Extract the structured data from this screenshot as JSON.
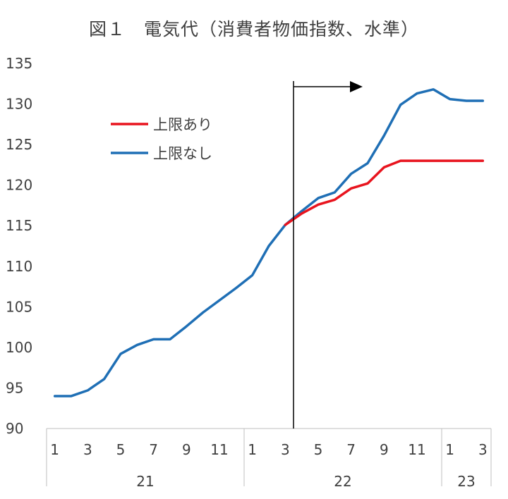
{
  "chart_data": {
    "type": "line",
    "title": "図１　電気代（消費者物価指数、水準）",
    "xlabel": "",
    "ylabel": "",
    "ylim": [
      90,
      135
    ],
    "yticks": [
      "90",
      "95",
      "100",
      "105",
      "110",
      "115",
      "120",
      "125",
      "130",
      "135"
    ],
    "grid": false,
    "legend_position": "upper-left",
    "x_month_labels": [
      "1",
      "",
      "3",
      "",
      "5",
      "",
      "7",
      "",
      "9",
      "",
      "11",
      "",
      "1",
      "",
      "3",
      "",
      "5",
      "",
      "7",
      "",
      "9",
      "",
      "11",
      "",
      "1",
      "",
      "3"
    ],
    "x_year_labels": [
      "21",
      "22",
      "23"
    ],
    "categories": [
      "2021-01",
      "2021-02",
      "2021-03",
      "2021-04",
      "2021-05",
      "2021-06",
      "2021-07",
      "2021-08",
      "2021-09",
      "2021-10",
      "2021-11",
      "2021-12",
      "2022-01",
      "2022-02",
      "2022-03",
      "2022-04",
      "2022-05",
      "2022-06",
      "2022-07",
      "2022-08",
      "2022-09",
      "2022-10",
      "2022-11",
      "2022-12",
      "2023-01",
      "2023-02",
      "2023-03"
    ],
    "series": [
      {
        "name": "上限なし",
        "color": "#1f6fb5",
        "values": [
          94.0,
          94.0,
          94.7,
          96.1,
          99.2,
          100.3,
          101.0,
          101.0,
          102.6,
          104.3,
          105.8,
          107.3,
          108.9,
          112.5,
          115.1,
          116.8,
          118.4,
          119.1,
          121.4,
          122.7,
          126.1,
          129.9,
          131.3,
          131.8,
          130.6,
          130.4,
          130.4
        ]
      },
      {
        "name": "上限あり",
        "color": "#e8141e",
        "values": [
          null,
          null,
          null,
          null,
          null,
          null,
          null,
          null,
          null,
          null,
          null,
          null,
          null,
          null,
          null,
          116.5,
          117.6,
          118.2,
          119.6,
          120.2,
          122.2,
          123.0,
          123.0,
          123.0,
          123.0,
          123.0,
          123.0
        ]
      }
    ],
    "annotations": [
      {
        "type": "vertical-line",
        "description": "marker",
        "x_position_month_index": 14.5
      },
      {
        "type": "arrow",
        "direction": "right"
      }
    ]
  }
}
